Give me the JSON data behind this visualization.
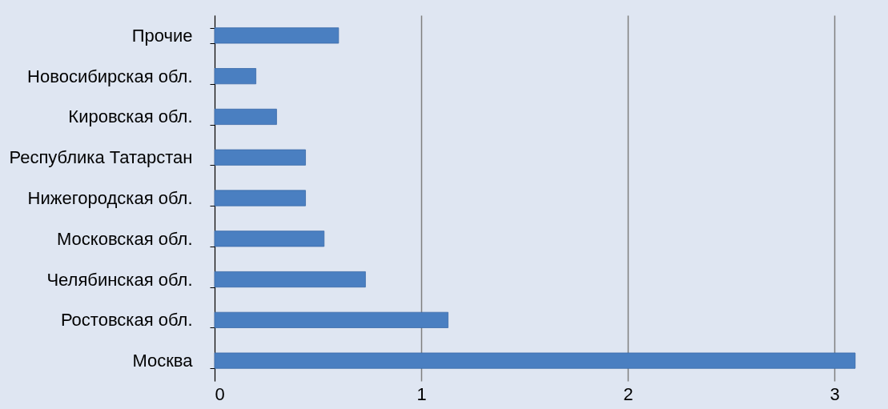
{
  "chart_data": {
    "type": "bar",
    "orientation": "horizontal",
    "categories": [
      "Прочие",
      "Новосибирская обл.",
      "Кировская обл.",
      "Республика Татарстан",
      "Нижегородская обл.",
      "Московская обл.",
      "Челябинская обл.",
      "Ростовская обл.",
      "Москва"
    ],
    "values": [
      0.6,
      0.2,
      0.3,
      0.44,
      0.44,
      0.53,
      0.73,
      1.13,
      3.1
    ],
    "color": "#4a7fc1",
    "xlim": [
      0,
      3.1
    ],
    "xticks": [
      0,
      1,
      2,
      3
    ],
    "grid": "x"
  }
}
